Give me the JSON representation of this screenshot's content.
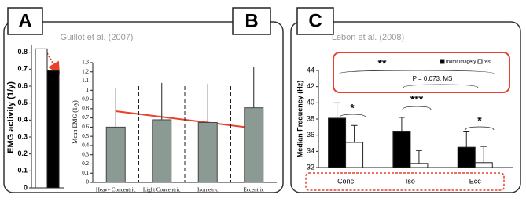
{
  "chart_data": [
    {
      "type": "bar",
      "panel_label": "A",
      "y_label": "EMG activity (1/y)",
      "values": [
        0.82,
        0.69
      ],
      "colors": [
        "#ffffff",
        "#000000"
      ],
      "ylim": [
        0,
        0.84
      ],
      "yticks": [
        0,
        0.1,
        0.2,
        0.3,
        0.4,
        0.5,
        0.6,
        0.7,
        0.8
      ]
    },
    {
      "type": "bar",
      "panel_label": "B",
      "title": "Guillot et al. (2007)",
      "y_label": "Mean EMG (1/y)",
      "categories": [
        "Heavy Concentric",
        "Light Concentric",
        "Isometric",
        "Eccentric"
      ],
      "values": [
        0.6,
        0.68,
        0.65,
        0.81
      ],
      "errors": [
        0.42,
        0.4,
        0.42,
        0.44
      ],
      "color": "#8c9a94",
      "ylim": [
        0,
        1.3
      ],
      "yticks": [
        0,
        0.1,
        0.2,
        0.3,
        0.4,
        0.5,
        0.6,
        0.7,
        0.8,
        0.9,
        1,
        1.1,
        1.2,
        1.3
      ]
    },
    {
      "type": "grouped_bar",
      "panel_label": "C",
      "title": "Lebon et al. (2008)",
      "y_label": "Median Frequency (Hz)",
      "categories": [
        "Conc",
        "Iso",
        "Ecc"
      ],
      "series": [
        {
          "name": "motor imagery",
          "color": "#000000",
          "values": [
            38.1,
            36.5,
            34.5
          ],
          "errors": [
            1.9,
            1.7,
            2.0
          ]
        },
        {
          "name": "rest",
          "color": "#ffffff",
          "values": [
            35.1,
            32.5,
            32.6
          ],
          "errors": [
            2.1,
            1.6,
            2.0
          ]
        }
      ],
      "annotations": [
        "*",
        "***",
        "*",
        "**",
        "P = 0.073, MS"
      ],
      "ylim": [
        32,
        44
      ],
      "yticks": [
        32,
        34,
        36,
        38,
        40,
        42,
        44
      ]
    }
  ]
}
